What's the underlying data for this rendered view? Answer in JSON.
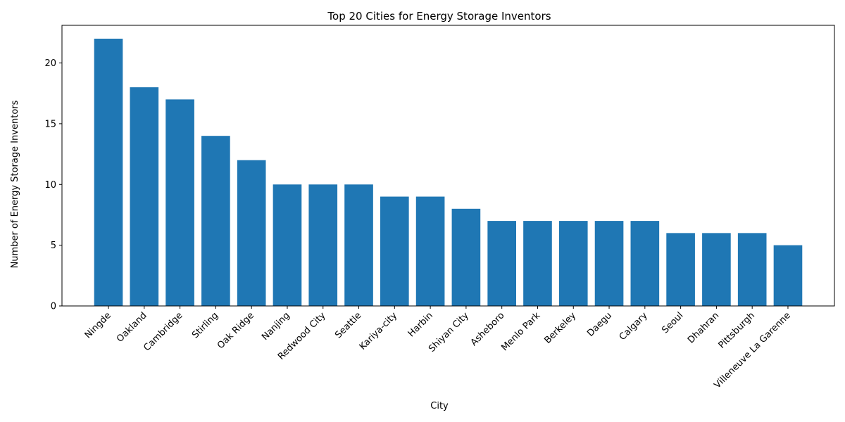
{
  "chart_data": {
    "type": "bar",
    "title": "Top 20 Cities for Energy Storage Inventors",
    "xlabel": "City",
    "ylabel": "Number of Energy Storage Inventors",
    "categories": [
      "Ningde",
      "Oakland",
      "Cambridge",
      "Stirling",
      "Oak Ridge",
      "Nanjing",
      "Redwood City",
      "Seattle",
      "Kariya-city",
      "Harbin",
      "Shiyan City",
      "Asheboro",
      "Menlo Park",
      "Berkeley",
      "Daegu",
      "Calgary",
      "Seoul",
      "Dhahran",
      "Pittsburgh",
      "Villeneuve La Garenne"
    ],
    "values": [
      22,
      18,
      17,
      14,
      12,
      10,
      10,
      10,
      9,
      9,
      8,
      7,
      7,
      7,
      7,
      7,
      6,
      6,
      6,
      5
    ],
    "ylim": [
      0,
      23.1
    ],
    "yticks": [
      0,
      5,
      10,
      15,
      20
    ],
    "bar_color": "#1f77b4",
    "grid": false,
    "legend": "none"
  }
}
